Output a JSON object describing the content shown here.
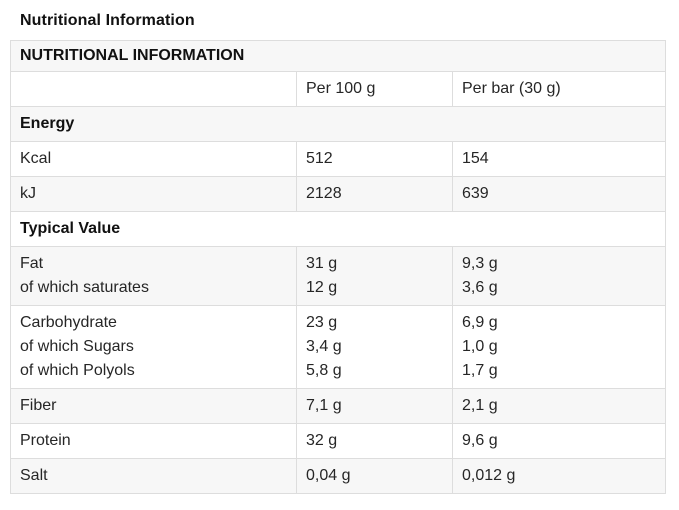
{
  "page": {
    "title": "Nutritional Information"
  },
  "table": {
    "header": "NUTRITIONAL INFORMATION",
    "columns": [
      "",
      "Per 100 g",
      "Per bar (30 g)"
    ],
    "rows": [
      {
        "kind": "section",
        "label": "Energy"
      },
      {
        "kind": "data",
        "label": [
          "Kcal"
        ],
        "per100": [
          "512"
        ],
        "perbar": [
          "154"
        ]
      },
      {
        "kind": "data",
        "label": [
          "kJ"
        ],
        "per100": [
          "2128"
        ],
        "perbar": [
          "639"
        ]
      },
      {
        "kind": "section",
        "label": "Typical Value"
      },
      {
        "kind": "data",
        "label": [
          "Fat",
          "of which saturates"
        ],
        "per100": [
          "31 g",
          "12 g"
        ],
        "perbar": [
          "9,3 g",
          "3,6 g"
        ]
      },
      {
        "kind": "data",
        "label": [
          "Carbohydrate",
          "of which Sugars",
          "of which Polyols"
        ],
        "per100": [
          "23 g",
          "3,4 g",
          "5,8 g"
        ],
        "perbar": [
          "6,9 g",
          "1,0 g",
          "1,7 g"
        ]
      },
      {
        "kind": "data",
        "label": [
          "Fiber"
        ],
        "per100": [
          "7,1 g"
        ],
        "perbar": [
          "2,1 g"
        ]
      },
      {
        "kind": "data",
        "label": [
          "Protein"
        ],
        "per100": [
          "32 g"
        ],
        "perbar": [
          "9,6 g"
        ]
      },
      {
        "kind": "data",
        "label": [
          "Salt"
        ],
        "per100": [
          "0,04 g"
        ],
        "perbar": [
          "0,012 g"
        ]
      }
    ]
  },
  "colors": {
    "stripe": "#f7f7f7",
    "border": "#dddddd",
    "text": "#262626",
    "heading": "#111111",
    "background": "#ffffff"
  }
}
